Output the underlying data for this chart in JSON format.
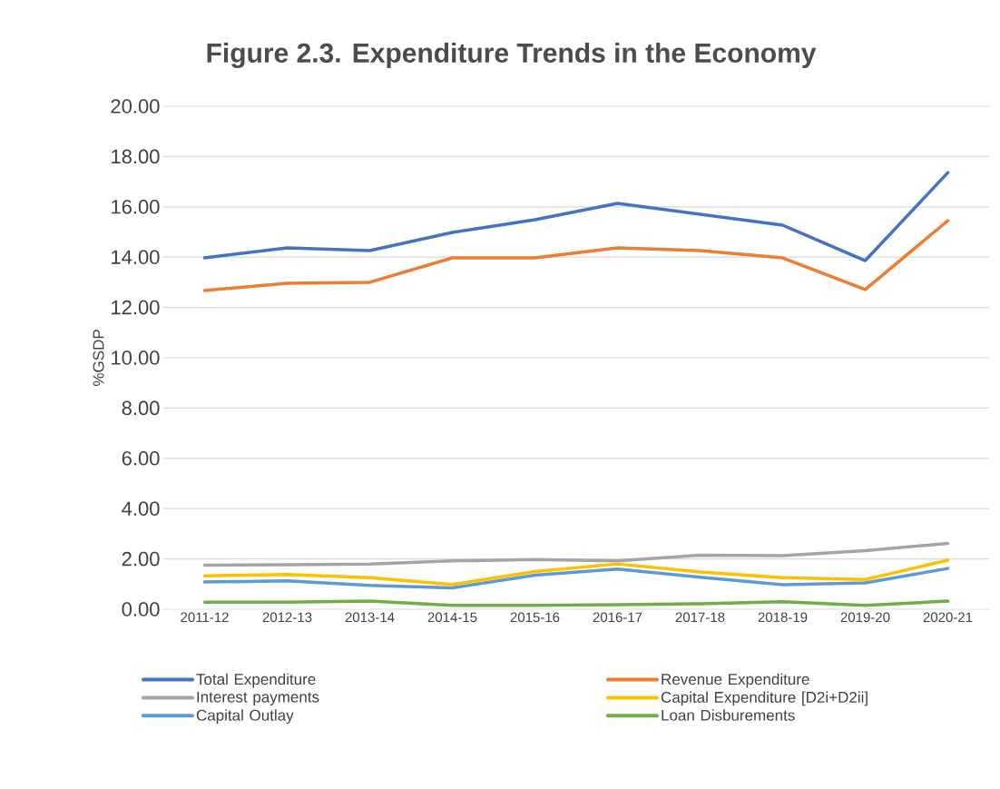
{
  "chart_data": {
    "type": "line",
    "title": "Figure 2.3. Expenditure Trends in the Economy",
    "ylabel": "%GSDP",
    "categories": [
      "2011-12",
      "2012-13",
      "2013-14",
      "2014-15",
      "2015-16",
      "2016-17",
      "2017-18",
      "2018-19",
      "2019-20",
      "2020-21"
    ],
    "series": [
      {
        "name": "Total Expenditure",
        "color": "#4472c4",
        "values": [
          13.97,
          14.37,
          14.26,
          14.98,
          15.49,
          16.14,
          15.7,
          15.27,
          13.86,
          17.36
        ]
      },
      {
        "name": "Revenue Expenditure",
        "color": "#ed7d31",
        "values": [
          12.67,
          12.96,
          13.0,
          13.97,
          13.97,
          14.37,
          14.26,
          13.97,
          12.71,
          15.45
        ]
      },
      {
        "name": "Interest payments",
        "color": "#a5a5a5",
        "values": [
          1.75,
          1.77,
          1.8,
          1.92,
          1.98,
          1.92,
          2.15,
          2.13,
          2.33,
          2.62
        ]
      },
      {
        "name": "Capital Expenditure [D2i+D2ii]",
        "color": "#ffc000",
        "values": [
          1.33,
          1.38,
          1.25,
          0.98,
          1.5,
          1.8,
          1.48,
          1.25,
          1.18,
          1.95
        ]
      },
      {
        "name": "Capital Outlay",
        "color": "#5b9bd5",
        "values": [
          1.08,
          1.13,
          0.95,
          0.85,
          1.35,
          1.6,
          1.27,
          0.97,
          1.05,
          1.62
        ]
      },
      {
        "name": "Loan Disburements",
        "color": "#70ad47",
        "values": [
          0.28,
          0.28,
          0.32,
          0.15,
          0.15,
          0.18,
          0.22,
          0.3,
          0.15,
          0.32
        ]
      }
    ],
    "ylim": [
      0,
      20
    ],
    "yticks": [
      {
        "value": 0,
        "label": "0.00"
      },
      {
        "value": 2,
        "label": "2.00"
      },
      {
        "value": 4,
        "label": "4.00"
      },
      {
        "value": 6,
        "label": "6.00"
      },
      {
        "value": 8,
        "label": "8.00"
      },
      {
        "value": 10,
        "label": "10.00"
      },
      {
        "value": 12,
        "label": "12.00"
      },
      {
        "value": 14,
        "label": "14.00"
      },
      {
        "value": 16,
        "label": "16.00"
      },
      {
        "value": 18,
        "label": "18.00"
      },
      {
        "value": 20,
        "label": "20.00"
      }
    ],
    "grid": "y",
    "legend": "bottom",
    "marker": "none",
    "line_style": "solid"
  }
}
